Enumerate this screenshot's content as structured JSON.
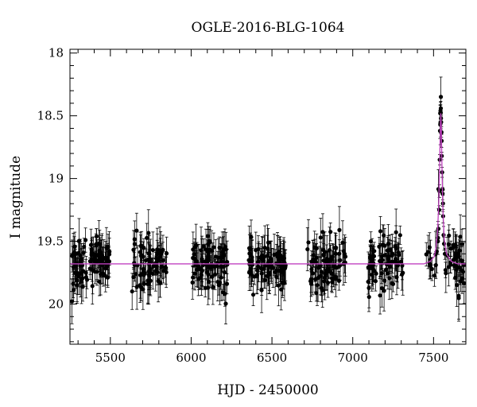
{
  "chart_data": {
    "type": "scatter",
    "title": "OGLE-2016-BLG-1064",
    "xlabel": "HJD - 2450000",
    "ylabel": "I magnitude",
    "xlim": [
      5250,
      7700
    ],
    "ylim": [
      20.32,
      17.97
    ],
    "y_inverted": true,
    "xticks": [
      5500,
      6000,
      6500,
      7000,
      7500
    ],
    "yticks": [
      18,
      18.5,
      19,
      19.5,
      20
    ],
    "ytick_labels": [
      "18",
      "18.5",
      "19",
      "19.5",
      "20"
    ],
    "grid": false,
    "colors": {
      "points": "#000000",
      "model": "#c040c0",
      "axes": "#000000"
    },
    "baseline_magnitude": 19.68,
    "seasons": [
      {
        "x_start": 5262,
        "x_end": 5495,
        "count": 95
      },
      {
        "x_start": 5628,
        "x_end": 5848,
        "count": 80
      },
      {
        "x_start": 5995,
        "x_end": 6225,
        "count": 85
      },
      {
        "x_start": 6355,
        "x_end": 6585,
        "count": 90
      },
      {
        "x_start": 6720,
        "x_end": 6955,
        "count": 80
      },
      {
        "x_start": 7085,
        "x_end": 7315,
        "count": 75
      },
      {
        "x_start": 7455,
        "x_end": 7700,
        "count": 60
      }
    ],
    "peak": {
      "x": 7545,
      "magnitude": 18.45,
      "model_peak": 18.48
    },
    "model_curve": [
      [
        5250,
        19.68
      ],
      [
        7440,
        19.68
      ],
      [
        7480,
        19.66
      ],
      [
        7505,
        19.62
      ],
      [
        7515,
        19.55
      ],
      [
        7525,
        19.42
      ],
      [
        7532,
        19.2
      ],
      [
        7538,
        18.85
      ],
      [
        7542,
        18.6
      ],
      [
        7545,
        18.48
      ],
      [
        7548,
        18.6
      ],
      [
        7552,
        18.9
      ],
      [
        7558,
        19.25
      ],
      [
        7566,
        19.48
      ],
      [
        7580,
        19.6
      ],
      [
        7610,
        19.66
      ],
      [
        7650,
        19.68
      ],
      [
        7700,
        19.68
      ]
    ],
    "peak_points": [
      [
        7541,
        18.48
      ],
      [
        7543,
        18.46
      ],
      [
        7545,
        18.44
      ],
      [
        7546,
        18.52
      ],
      [
        7547,
        18.55
      ],
      [
        7549,
        18.63
      ],
      [
        7550,
        18.7
      ],
      [
        7551,
        18.82
      ],
      [
        7553,
        18.95
      ],
      [
        7540,
        18.62
      ],
      [
        7538,
        18.85
      ],
      [
        7536,
        19.1
      ],
      [
        7535,
        19.25
      ],
      [
        7556,
        19.12
      ],
      [
        7559,
        19.3
      ],
      [
        7562,
        19.45
      ],
      [
        7565,
        19.52
      ],
      [
        7570,
        19.6
      ],
      [
        7530,
        19.4
      ],
      [
        7527,
        19.5
      ]
    ]
  }
}
